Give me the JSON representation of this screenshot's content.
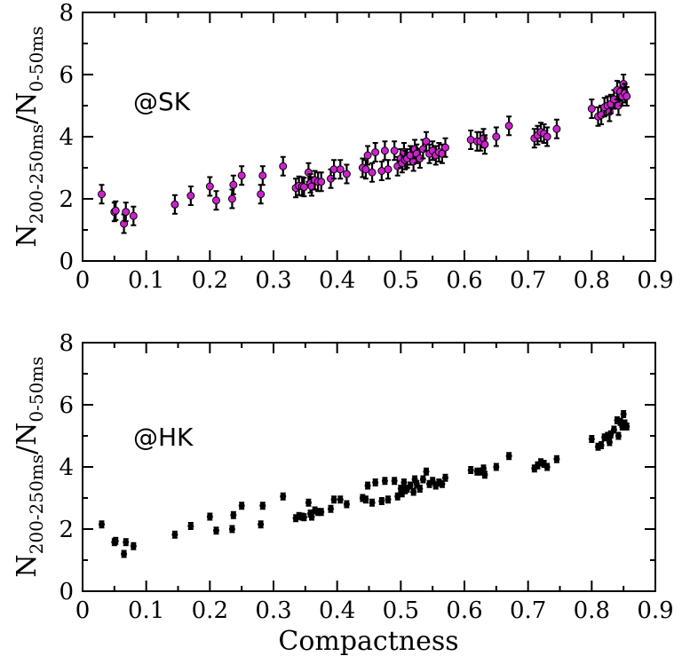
{
  "chart_data": [
    {
      "type": "scatter",
      "panel_label": "@SK",
      "ylabel_main": "N",
      "ylabel_sub1": "200-250ms",
      "ylabel_mid": "/N",
      "ylabel_sub2": "0-50ms",
      "xlabel": "",
      "xlim": [
        0,
        0.9
      ],
      "ylim": [
        0,
        8
      ],
      "x_ticks": [
        "0",
        "0.1",
        "0.2",
        "0.3",
        "0.4",
        "0.5",
        "0.6",
        "0.7",
        "0.8",
        "0.9"
      ],
      "y_ticks": [
        "0",
        "2",
        "4",
        "6",
        "8"
      ],
      "marker_color": "#cc22cc",
      "error_bars": true,
      "error": 0.3
    },
    {
      "type": "scatter",
      "panel_label": "@HK",
      "ylabel_main": "N",
      "ylabel_sub1": "200-250ms",
      "ylabel_mid": "/N",
      "ylabel_sub2": "0-50ms",
      "xlabel": "Compactness",
      "xlim": [
        0,
        0.9
      ],
      "ylim": [
        0,
        8
      ],
      "x_ticks": [
        "0",
        "0.1",
        "0.2",
        "0.3",
        "0.4",
        "0.5",
        "0.6",
        "0.7",
        "0.8",
        "0.9"
      ],
      "y_ticks": [
        "0",
        "2",
        "4",
        "6",
        "8"
      ],
      "marker_color": "#000000",
      "error_bars": true,
      "error": 0.1
    }
  ],
  "points": [
    [
      0.03,
      2.15
    ],
    [
      0.05,
      1.58
    ],
    [
      0.052,
      1.62
    ],
    [
      0.065,
      1.2
    ],
    [
      0.068,
      1.58
    ],
    [
      0.08,
      1.45
    ],
    [
      0.145,
      1.82
    ],
    [
      0.17,
      2.1
    ],
    [
      0.2,
      2.4
    ],
    [
      0.21,
      1.95
    ],
    [
      0.235,
      2.0
    ],
    [
      0.237,
      2.45
    ],
    [
      0.25,
      2.75
    ],
    [
      0.28,
      2.15
    ],
    [
      0.283,
      2.75
    ],
    [
      0.315,
      3.05
    ],
    [
      0.335,
      2.35
    ],
    [
      0.34,
      2.42
    ],
    [
      0.345,
      2.4
    ],
    [
      0.348,
      2.38
    ],
    [
      0.355,
      2.85
    ],
    [
      0.358,
      2.5
    ],
    [
      0.36,
      2.4
    ],
    [
      0.365,
      2.6
    ],
    [
      0.37,
      2.55
    ],
    [
      0.375,
      2.55
    ],
    [
      0.39,
      2.65
    ],
    [
      0.395,
      2.95
    ],
    [
      0.405,
      2.95
    ],
    [
      0.415,
      2.8
    ],
    [
      0.44,
      3.0
    ],
    [
      0.445,
      2.95
    ],
    [
      0.448,
      3.4
    ],
    [
      0.455,
      2.85
    ],
    [
      0.46,
      3.5
    ],
    [
      0.47,
      2.9
    ],
    [
      0.475,
      3.55
    ],
    [
      0.48,
      2.95
    ],
    [
      0.49,
      3.55
    ],
    [
      0.495,
      3.05
    ],
    [
      0.5,
      3.3
    ],
    [
      0.502,
      3.15
    ],
    [
      0.505,
      3.5
    ],
    [
      0.507,
      3.25
    ],
    [
      0.51,
      3.3
    ],
    [
      0.515,
      3.4
    ],
    [
      0.52,
      3.2
    ],
    [
      0.522,
      3.6
    ],
    [
      0.525,
      3.45
    ],
    [
      0.53,
      3.3
    ],
    [
      0.535,
      3.6
    ],
    [
      0.54,
      3.85
    ],
    [
      0.545,
      3.45
    ],
    [
      0.55,
      3.55
    ],
    [
      0.555,
      3.4
    ],
    [
      0.56,
      3.5
    ],
    [
      0.565,
      3.45
    ],
    [
      0.57,
      3.65
    ],
    [
      0.61,
      3.9
    ],
    [
      0.62,
      3.85
    ],
    [
      0.625,
      3.85
    ],
    [
      0.63,
      3.95
    ],
    [
      0.632,
      3.75
    ],
    [
      0.65,
      4.0
    ],
    [
      0.67,
      4.35
    ],
    [
      0.71,
      3.95
    ],
    [
      0.715,
      4.05
    ],
    [
      0.72,
      4.15
    ],
    [
      0.725,
      4.1
    ],
    [
      0.73,
      4.0
    ],
    [
      0.745,
      4.25
    ],
    [
      0.8,
      4.9
    ],
    [
      0.81,
      4.65
    ],
    [
      0.815,
      4.7
    ],
    [
      0.82,
      4.95
    ],
    [
      0.825,
      5.0
    ],
    [
      0.828,
      4.8
    ],
    [
      0.83,
      5.05
    ],
    [
      0.835,
      5.2
    ],
    [
      0.84,
      5.5
    ],
    [
      0.842,
      5.0
    ],
    [
      0.845,
      5.45
    ],
    [
      0.848,
      5.3
    ],
    [
      0.85,
      5.7
    ],
    [
      0.852,
      5.4
    ],
    [
      0.855,
      5.3
    ]
  ]
}
